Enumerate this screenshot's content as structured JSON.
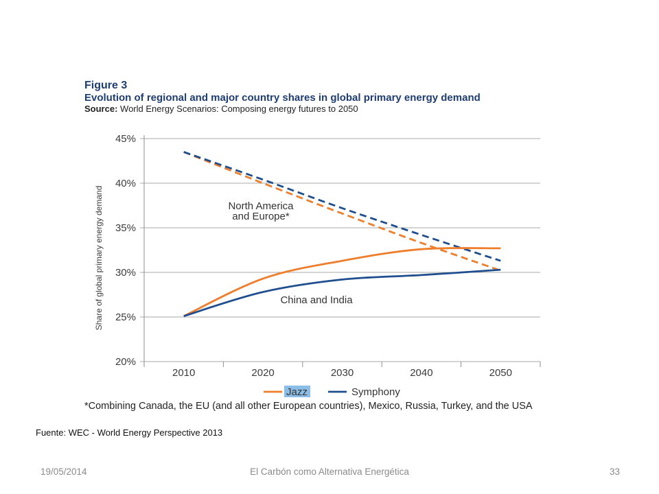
{
  "slide": {
    "source_note": "Fuente: WEC - World Energy Perspective 2013",
    "footer": {
      "date": "19/05/2014",
      "title": "El Carbón como Alternativa Energética",
      "page": "33"
    }
  },
  "figure": {
    "label": "Figure 3",
    "source_label": "Source:",
    "source_text": "World Energy Scenarios: Composing energy futures to 2050",
    "footnote": "*Combining Canada, the EU (and all other European countries), Mexico, Russia, Turkey, and the USA"
  },
  "colors": {
    "figure_title": "#1e3d70",
    "jazz": "#ee7d2c",
    "symphony": "#1f4e8e",
    "legend_highlight": "#8bbde9",
    "footer_text": "#8a8a8a",
    "grid": "#a9a9a9"
  },
  "chart_data": {
    "type": "line",
    "title": "Evolution of regional and major country shares in global primary energy demand",
    "xlabel": "",
    "ylabel": "Share of global primary energy demand",
    "categories": [
      "2010",
      "2020",
      "2030",
      "2040",
      "2050"
    ],
    "ylim": [
      20,
      45
    ],
    "y_ticks": [
      45,
      40,
      35,
      30,
      25,
      20
    ],
    "y_tick_labels": [
      "45%",
      "40%",
      "35%",
      "30%",
      "25%",
      "20%"
    ],
    "y_grid": true,
    "legend": {
      "placement": "bottom",
      "items": [
        {
          "name": "Jazz",
          "color": "#ee7d2c",
          "highlighted": true
        },
        {
          "name": "Symphony",
          "color": "#1f4e8e",
          "highlighted": false
        }
      ]
    },
    "annotations": [
      {
        "lines": [
          "North America",
          "and Europe*"
        ]
      },
      {
        "lines": [
          "China and India"
        ]
      }
    ],
    "series": [
      {
        "name": "Jazz",
        "region": 0,
        "dashed": true,
        "values": [
          43.5,
          40.0,
          36.6,
          33.3,
          30.2
        ]
      },
      {
        "name": "Symphony",
        "region": 0,
        "dashed": true,
        "values": [
          43.5,
          40.4,
          37.2,
          34.2,
          31.3
        ]
      },
      {
        "name": "Jazz",
        "region": 1,
        "dashed": false,
        "values": [
          25.1,
          29.3,
          31.3,
          32.6,
          32.7
        ]
      },
      {
        "name": "Symphony",
        "region": 1,
        "dashed": false,
        "values": [
          25.1,
          27.8,
          29.2,
          29.7,
          30.3
        ]
      }
    ]
  }
}
